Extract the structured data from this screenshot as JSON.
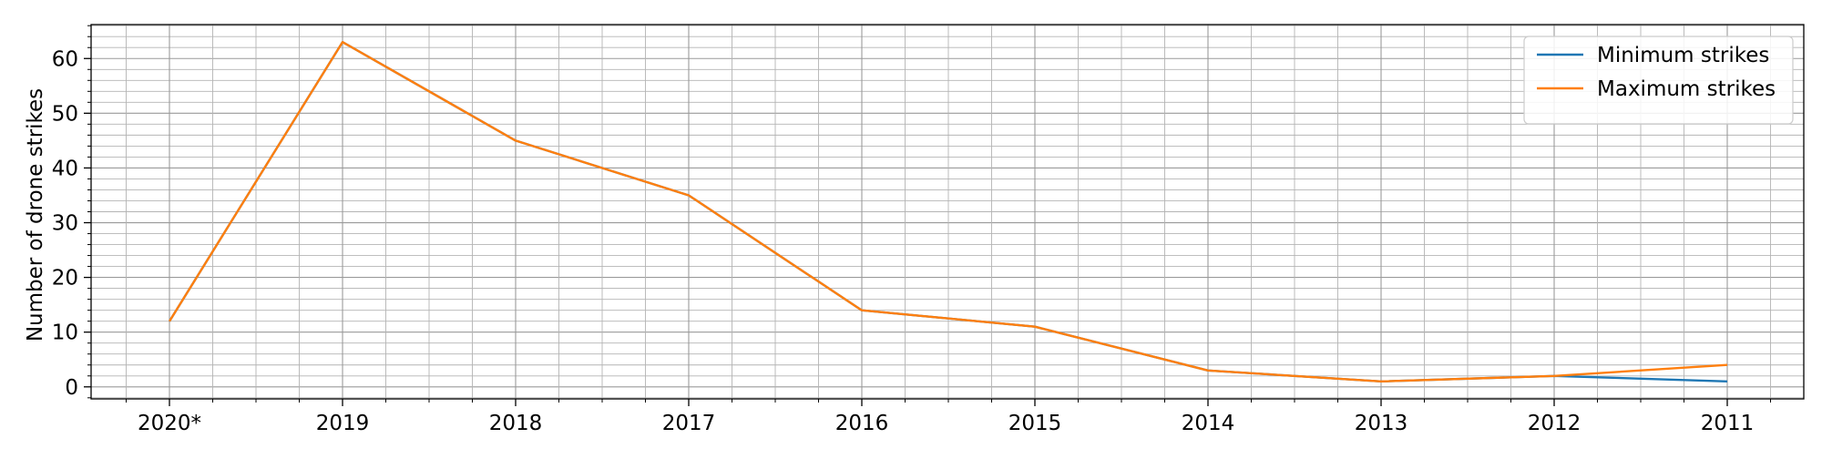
{
  "chart_data": {
    "type": "line",
    "categories": [
      "2020*",
      "2019",
      "2018",
      "2017",
      "2016",
      "2015",
      "2014",
      "2013",
      "2012",
      "2011"
    ],
    "series": [
      {
        "name": "Minimum strikes",
        "values": [
          12,
          63,
          45,
          35,
          14,
          11,
          3,
          1,
          2,
          1
        ],
        "color": "#1f77b4"
      },
      {
        "name": "Maximum strikes",
        "values": [
          12,
          63,
          45,
          35,
          14,
          11,
          3,
          1,
          2,
          4
        ],
        "color": "#ff7f0e"
      }
    ],
    "title": "",
    "xlabel": "",
    "ylabel": "Number of drone strikes",
    "ylim": [
      -2.2,
      66.2
    ],
    "yticks": [
      0,
      10,
      20,
      30,
      40,
      50,
      60
    ],
    "y_minor_step": 2,
    "x_minor_per_major": 4,
    "grid": true,
    "legend_position": "top-right"
  }
}
